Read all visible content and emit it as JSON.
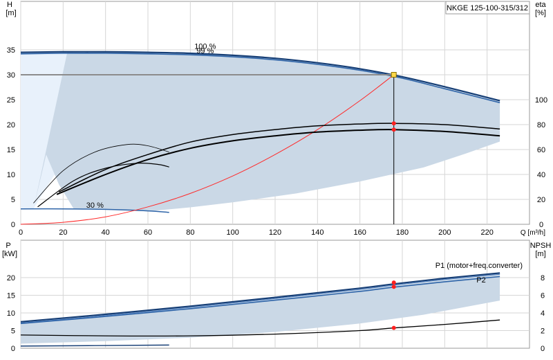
{
  "chart_data": [
    {
      "type": "line",
      "title": "NKGE 125-100-315/312",
      "ylabel": "H",
      "ylabel_unit": "[m]",
      "y2label": "eta",
      "y2label_unit": "[%]",
      "xlabel": "Q [m³/h]",
      "xlim": [
        0,
        240
      ],
      "ylim": [
        0,
        40
      ],
      "y2lim": [
        0,
        125
      ],
      "xticks": [
        0,
        20,
        40,
        60,
        80,
        100,
        120,
        140,
        160,
        180,
        200,
        220
      ],
      "yticks": [
        0,
        5,
        10,
        15,
        20,
        25,
        30,
        35
      ],
      "y2ticks": [
        0,
        20,
        40,
        60,
        80,
        100
      ],
      "grid": true,
      "annotations": [
        "100 %",
        "99 %",
        "30 %"
      ],
      "operating_point": {
        "q": 176,
        "h": 30
      },
      "series": [
        {
          "role": "head-100",
          "x": [
            0,
            20,
            40,
            60,
            80,
            100,
            120,
            140,
            160,
            180,
            200,
            226
          ],
          "y": [
            34.5,
            34.6,
            34.6,
            34.5,
            34.3,
            33.9,
            33.3,
            32.4,
            31.2,
            29.6,
            27.6,
            24.8
          ]
        },
        {
          "role": "head-99",
          "x": [
            0,
            20,
            40,
            60,
            80,
            100,
            120,
            140,
            160,
            180,
            200,
            226
          ],
          "y": [
            34.2,
            34.3,
            34.3,
            34.2,
            34.0,
            33.6,
            33.0,
            32.1,
            30.9,
            29.3,
            27.2,
            24.4
          ]
        },
        {
          "role": "head-30",
          "x": [
            0,
            20,
            40,
            60,
            70
          ],
          "y": [
            3.1,
            3.1,
            3.0,
            2.7,
            2.4
          ]
        },
        {
          "role": "system-curve",
          "x": [
            0,
            20,
            40,
            60,
            80,
            100,
            120,
            140,
            160,
            176
          ],
          "y": [
            0,
            0.4,
            1.5,
            3.5,
            6.2,
            9.7,
            14.0,
            19.0,
            24.8,
            30.0
          ]
        },
        {
          "role": "efficiency-1",
          "x": [
            18,
            40,
            60,
            80,
            100,
            120,
            140,
            160,
            176,
            200,
            226
          ],
          "y2": [
            26,
            44,
            56,
            66,
            72,
            76,
            79,
            80.5,
            81,
            80,
            76.5
          ]
        },
        {
          "role": "efficiency-2",
          "x": [
            17,
            40,
            60,
            80,
            100,
            120,
            140,
            160,
            176,
            200,
            226
          ],
          "y2": [
            24,
            40,
            52,
            61,
            67,
            71,
            74,
            75.5,
            76,
            74.5,
            71
          ]
        },
        {
          "role": "efficiency-small-1",
          "x": [
            6,
            20,
            35,
            50,
            60,
            70
          ],
          "y2": [
            17,
            43,
            58,
            64,
            63,
            58
          ]
        },
        {
          "role": "efficiency-small-2",
          "x": [
            8,
            25,
            40,
            55,
            65,
            70
          ],
          "y2": [
            14,
            35,
            45,
            49,
            48,
            46
          ]
        }
      ],
      "shaded_range": true
    },
    {
      "type": "line",
      "ylabel": "P",
      "ylabel_unit": "[kW]",
      "y2label": "NPSH",
      "y2label_unit": "[m]",
      "ylim": [
        0,
        25
      ],
      "y2lim": [
        0,
        10
      ],
      "yticks": [
        0,
        5,
        10,
        15,
        20
      ],
      "y2ticks": [
        0,
        2,
        4,
        6,
        8
      ],
      "grid": true,
      "series": [
        {
          "name": "P1 (motor+freq.converter)",
          "x": [
            0,
            40,
            80,
            120,
            160,
            176,
            200,
            226
          ],
          "y": [
            7.5,
            9.6,
            11.9,
            14.4,
            17.0,
            18.2,
            19.8,
            21.3
          ]
        },
        {
          "name": "P2",
          "x": [
            0,
            40,
            80,
            120,
            160,
            176,
            200,
            226
          ],
          "y": [
            7.0,
            9.0,
            11.2,
            13.6,
            16.1,
            17.3,
            18.8,
            20.3
          ]
        },
        {
          "role": "p-low",
          "x": [
            0,
            70
          ],
          "y": [
            0.6,
            0.9
          ]
        },
        {
          "role": "npsh",
          "x": [
            0,
            40,
            80,
            120,
            160,
            176,
            200,
            226
          ],
          "y2": [
            1.5,
            1.4,
            1.4,
            1.6,
            2.0,
            2.3,
            2.7,
            3.2
          ]
        }
      ],
      "marker_q": 176
    }
  ]
}
